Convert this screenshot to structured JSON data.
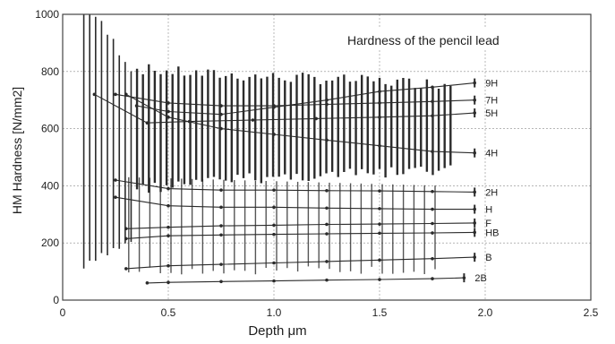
{
  "chart_data": {
    "type": "line",
    "title": "Hardness of the pencil lead",
    "xlabel": "Depth μm",
    "ylabel": "HM Hardness [N/mm2]",
    "xlim": [
      0,
      2.5
    ],
    "ylim": [
      0,
      1000
    ],
    "xticks": [
      "0",
      "0.5",
      "1.0",
      "1.5",
      "2.0",
      "2.5"
    ],
    "yticks": [
      "0",
      "200",
      "400",
      "600",
      "800",
      "1000"
    ],
    "grid": true,
    "colors": {
      "ink": "#2b2b2b",
      "grid": "#8a8a8a",
      "frame": "#444444"
    },
    "series": [
      {
        "name": "9H",
        "points": [
          [
            0.35,
            680
          ],
          [
            0.5,
            660
          ],
          [
            0.75,
            650
          ],
          [
            1.0,
            675
          ],
          [
            1.25,
            700
          ],
          [
            1.5,
            730
          ],
          [
            1.75,
            745
          ],
          [
            1.95,
            760
          ]
        ]
      },
      {
        "name": "7H",
        "points": [
          [
            0.25,
            720
          ],
          [
            0.5,
            690
          ],
          [
            0.75,
            680
          ],
          [
            1.0,
            680
          ],
          [
            1.25,
            685
          ],
          [
            1.5,
            690
          ],
          [
            1.75,
            695
          ],
          [
            1.95,
            700
          ]
        ]
      },
      {
        "name": "5H",
        "points": [
          [
            0.15,
            720
          ],
          [
            0.4,
            620
          ],
          [
            0.6,
            625
          ],
          [
            0.9,
            630
          ],
          [
            1.2,
            635
          ],
          [
            1.5,
            640
          ],
          [
            1.75,
            645
          ],
          [
            1.95,
            655
          ]
        ]
      },
      {
        "name": "4H",
        "points": [
          [
            0.3,
            720
          ],
          [
            0.5,
            640
          ],
          [
            0.75,
            600
          ],
          [
            1.0,
            580
          ],
          [
            1.25,
            560
          ],
          [
            1.5,
            540
          ],
          [
            1.75,
            520
          ],
          [
            1.95,
            515
          ]
        ]
      },
      {
        "name": "2H",
        "points": [
          [
            0.25,
            420
          ],
          [
            0.5,
            390
          ],
          [
            0.75,
            385
          ],
          [
            1.0,
            385
          ],
          [
            1.25,
            383
          ],
          [
            1.5,
            382
          ],
          [
            1.75,
            380
          ],
          [
            1.95,
            378
          ]
        ]
      },
      {
        "name": "H",
        "points": [
          [
            0.25,
            360
          ],
          [
            0.5,
            330
          ],
          [
            0.75,
            325
          ],
          [
            1.0,
            325
          ],
          [
            1.25,
            322
          ],
          [
            1.5,
            320
          ],
          [
            1.75,
            318
          ],
          [
            1.95,
            318
          ]
        ]
      },
      {
        "name": "F",
        "points": [
          [
            0.3,
            250
          ],
          [
            0.5,
            255
          ],
          [
            0.75,
            260
          ],
          [
            1.0,
            262
          ],
          [
            1.25,
            265
          ],
          [
            1.5,
            266
          ],
          [
            1.75,
            268
          ],
          [
            1.95,
            270
          ]
        ]
      },
      {
        "name": "HB",
        "points": [
          [
            0.3,
            215
          ],
          [
            0.5,
            225
          ],
          [
            0.75,
            228
          ],
          [
            1.0,
            230
          ],
          [
            1.25,
            232
          ],
          [
            1.5,
            234
          ],
          [
            1.75,
            235
          ],
          [
            1.95,
            237
          ]
        ]
      },
      {
        "name": "B",
        "points": [
          [
            0.3,
            110
          ],
          [
            0.5,
            120
          ],
          [
            0.75,
            125
          ],
          [
            1.0,
            130
          ],
          [
            1.25,
            135
          ],
          [
            1.5,
            140
          ],
          [
            1.75,
            145
          ],
          [
            1.95,
            150
          ]
        ]
      },
      {
        "name": "2B",
        "points": [
          [
            0.4,
            60
          ],
          [
            0.5,
            62
          ],
          [
            0.75,
            65
          ],
          [
            1.0,
            67
          ],
          [
            1.25,
            70
          ],
          [
            1.5,
            72
          ],
          [
            1.75,
            75
          ],
          [
            1.9,
            78
          ]
        ]
      }
    ]
  }
}
